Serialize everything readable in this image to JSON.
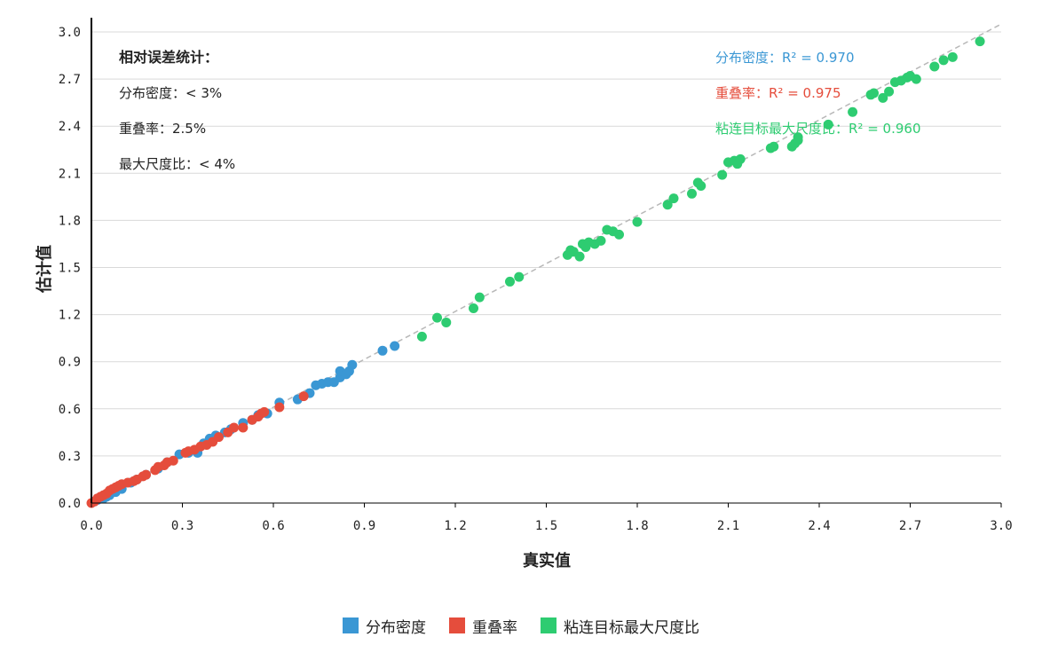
{
  "chart_data": {
    "type": "scatter",
    "xlabel": "真实值",
    "ylabel": "估计值",
    "xlim": [
      0,
      3.0
    ],
    "ylim": [
      0,
      3.0
    ],
    "x_ticks": [
      "0.0",
      "0.3",
      "0.6",
      "0.9",
      "1.2",
      "1.5",
      "1.8",
      "2.1",
      "2.4",
      "2.7",
      "3.0"
    ],
    "y_ticks": [
      "0.0",
      "0.3",
      "0.6",
      "0.9",
      "1.2",
      "1.5",
      "1.8",
      "2.1",
      "2.4",
      "2.7",
      "3.0"
    ],
    "grid": "horizontal",
    "reference_line": "y = x (dashed)",
    "legend_position": "bottom",
    "stats": {
      "title": "相对误差统计：",
      "lines": [
        "分布密度：< 3%",
        "重叠率：2.5%",
        "最大尺度比：< 4%"
      ]
    },
    "series": [
      {
        "name": "分布密度",
        "color": "#3a97d4",
        "r2_label": "分布密度：R² = 0.970",
        "points": [
          [
            0.01,
            0.01
          ],
          [
            0.02,
            0.02
          ],
          [
            0.04,
            0.03
          ],
          [
            0.05,
            0.04
          ],
          [
            0.06,
            0.05
          ],
          [
            0.08,
            0.07
          ],
          [
            0.1,
            0.09
          ],
          [
            0.13,
            0.13
          ],
          [
            0.15,
            0.15
          ],
          [
            0.18,
            0.18
          ],
          [
            0.22,
            0.22
          ],
          [
            0.25,
            0.26
          ],
          [
            0.29,
            0.31
          ],
          [
            0.32,
            0.32
          ],
          [
            0.35,
            0.32
          ],
          [
            0.37,
            0.38
          ],
          [
            0.39,
            0.41
          ],
          [
            0.41,
            0.43
          ],
          [
            0.44,
            0.45
          ],
          [
            0.46,
            0.47
          ],
          [
            0.5,
            0.51
          ],
          [
            0.53,
            0.53
          ],
          [
            0.55,
            0.56
          ],
          [
            0.58,
            0.57
          ],
          [
            0.62,
            0.64
          ],
          [
            0.68,
            0.66
          ],
          [
            0.72,
            0.7
          ],
          [
            0.74,
            0.75
          ],
          [
            0.76,
            0.76
          ],
          [
            0.78,
            0.77
          ],
          [
            0.8,
            0.77
          ],
          [
            0.82,
            0.8
          ],
          [
            0.82,
            0.84
          ],
          [
            0.84,
            0.82
          ],
          [
            0.85,
            0.84
          ],
          [
            0.86,
            0.88
          ],
          [
            0.96,
            0.97
          ],
          [
            1.0,
            1.0
          ]
        ]
      },
      {
        "name": "重叠率",
        "color": "#e54d3c",
        "r2_label": "重叠率：R² = 0.975",
        "points": [
          [
            0.0,
            0.0
          ],
          [
            0.01,
            0.01
          ],
          [
            0.02,
            0.03
          ],
          [
            0.03,
            0.04
          ],
          [
            0.04,
            0.05
          ],
          [
            0.05,
            0.06
          ],
          [
            0.06,
            0.08
          ],
          [
            0.07,
            0.09
          ],
          [
            0.08,
            0.1
          ],
          [
            0.09,
            0.11
          ],
          [
            0.1,
            0.12
          ],
          [
            0.12,
            0.13
          ],
          [
            0.14,
            0.14
          ],
          [
            0.15,
            0.15
          ],
          [
            0.17,
            0.17
          ],
          [
            0.18,
            0.18
          ],
          [
            0.21,
            0.21
          ],
          [
            0.22,
            0.23
          ],
          [
            0.24,
            0.24
          ],
          [
            0.25,
            0.26
          ],
          [
            0.27,
            0.27
          ],
          [
            0.31,
            0.32
          ],
          [
            0.32,
            0.33
          ],
          [
            0.34,
            0.34
          ],
          [
            0.36,
            0.36
          ],
          [
            0.38,
            0.37
          ],
          [
            0.4,
            0.39
          ],
          [
            0.42,
            0.42
          ],
          [
            0.45,
            0.45
          ],
          [
            0.47,
            0.48
          ],
          [
            0.5,
            0.48
          ],
          [
            0.53,
            0.53
          ],
          [
            0.55,
            0.55
          ],
          [
            0.56,
            0.57
          ],
          [
            0.57,
            0.58
          ],
          [
            0.62,
            0.61
          ],
          [
            0.7,
            0.68
          ]
        ]
      },
      {
        "name": "粘连目标最大尺度比",
        "color": "#2ecc71",
        "r2_label": "粘连目标最大尺度比：R² = 0.960",
        "points": [
          [
            1.09,
            1.06
          ],
          [
            1.14,
            1.18
          ],
          [
            1.17,
            1.15
          ],
          [
            1.26,
            1.24
          ],
          [
            1.28,
            1.31
          ],
          [
            1.38,
            1.41
          ],
          [
            1.41,
            1.44
          ],
          [
            1.57,
            1.58
          ],
          [
            1.58,
            1.61
          ],
          [
            1.59,
            1.6
          ],
          [
            1.61,
            1.57
          ],
          [
            1.62,
            1.65
          ],
          [
            1.63,
            1.63
          ],
          [
            1.64,
            1.66
          ],
          [
            1.66,
            1.65
          ],
          [
            1.68,
            1.67
          ],
          [
            1.7,
            1.74
          ],
          [
            1.72,
            1.73
          ],
          [
            1.74,
            1.71
          ],
          [
            1.8,
            1.79
          ],
          [
            1.9,
            1.9
          ],
          [
            1.92,
            1.94
          ],
          [
            1.98,
            1.97
          ],
          [
            2.0,
            2.04
          ],
          [
            2.01,
            2.02
          ],
          [
            2.08,
            2.09
          ],
          [
            2.1,
            2.17
          ],
          [
            2.12,
            2.18
          ],
          [
            2.13,
            2.16
          ],
          [
            2.14,
            2.19
          ],
          [
            2.24,
            2.26
          ],
          [
            2.25,
            2.27
          ],
          [
            2.31,
            2.27
          ],
          [
            2.32,
            2.29
          ],
          [
            2.33,
            2.31
          ],
          [
            2.33,
            2.33
          ],
          [
            2.43,
            2.41
          ],
          [
            2.51,
            2.49
          ],
          [
            2.57,
            2.6
          ],
          [
            2.58,
            2.61
          ],
          [
            2.61,
            2.58
          ],
          [
            2.63,
            2.62
          ],
          [
            2.65,
            2.68
          ],
          [
            2.67,
            2.69
          ],
          [
            2.69,
            2.71
          ],
          [
            2.7,
            2.72
          ],
          [
            2.72,
            2.7
          ],
          [
            2.78,
            2.78
          ],
          [
            2.81,
            2.82
          ],
          [
            2.84,
            2.84
          ],
          [
            2.93,
            2.94
          ]
        ]
      }
    ]
  }
}
